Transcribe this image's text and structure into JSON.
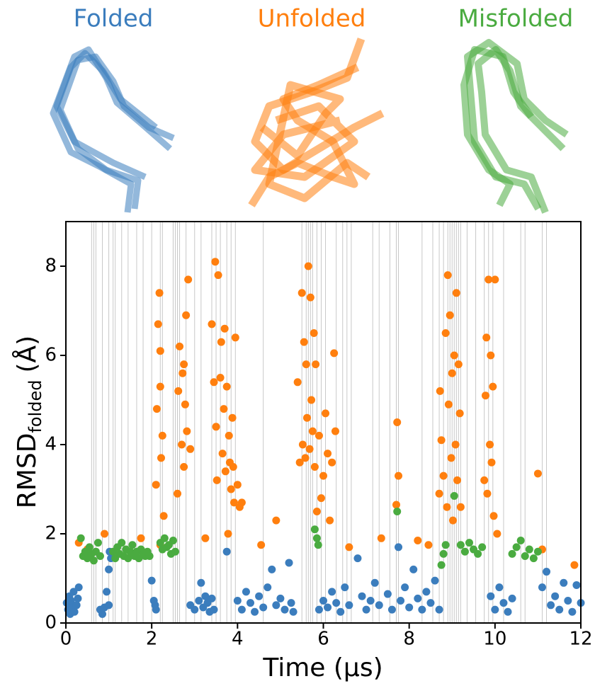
{
  "chart_data": {
    "type": "scatter",
    "xlabel": "Time (μs)",
    "ylabel": {
      "main": "RMSD",
      "sub": "folded",
      "unit": "(Å)"
    },
    "xlim": [
      0,
      12
    ],
    "xticks": [
      0,
      2,
      4,
      6,
      8,
      10,
      12
    ],
    "ylim": [
      0,
      9
    ],
    "yticks": [
      0,
      2,
      4,
      6,
      8
    ],
    "vlines": [
      0.6,
      0.65,
      0.7,
      0.85,
      1.0,
      1.1,
      1.15,
      1.3,
      1.45,
      1.65,
      1.8,
      2.0,
      2.2,
      2.25,
      2.5,
      2.55,
      2.6,
      2.65,
      2.8,
      3.0,
      3.15,
      3.4,
      3.5,
      3.6,
      3.75,
      3.85,
      3.95,
      4.6,
      5.5,
      5.6,
      5.65,
      5.7,
      5.75,
      5.85,
      5.95,
      6.05,
      6.3,
      6.45,
      6.55,
      6.65,
      7.15,
      7.3,
      7.55,
      7.7,
      7.75,
      8.3,
      8.55,
      8.7,
      8.8,
      8.9,
      8.95,
      9.0,
      9.05,
      9.1,
      9.15,
      9.2,
      9.35,
      9.55,
      9.75,
      9.85,
      9.95,
      10.2,
      10.6,
      10.7,
      11.1,
      11.2
    ],
    "series": [
      {
        "name": "Folded",
        "color": "#3b7dbd",
        "x": [
          0.02,
          0.05,
          0.08,
          0.1,
          0.12,
          0.15,
          0.18,
          0.2,
          0.25,
          0.3,
          0.28,
          0.8,
          0.85,
          0.9,
          0.95,
          1.0,
          1.0,
          1.05,
          1.02,
          2.0,
          2.05,
          2.1,
          2.08,
          2.9,
          3.0,
          3.1,
          3.15,
          3.2,
          3.25,
          3.3,
          3.35,
          3.4,
          3.45,
          3.75,
          4.0,
          4.1,
          4.2,
          4.3,
          4.4,
          4.5,
          4.6,
          4.7,
          4.8,
          4.9,
          5.0,
          5.1,
          5.2,
          5.25,
          5.3,
          5.9,
          6.0,
          6.1,
          6.2,
          6.3,
          6.4,
          6.5,
          6.6,
          6.8,
          6.9,
          7.0,
          7.1,
          7.2,
          7.3,
          7.5,
          7.6,
          7.75,
          7.8,
          7.9,
          8.0,
          8.1,
          8.2,
          8.3,
          8.4,
          8.5,
          8.6,
          8.7,
          9.9,
          10.0,
          10.1,
          10.2,
          10.3,
          10.4,
          11.1,
          11.2,
          11.3,
          11.4,
          11.5,
          11.6,
          11.7,
          11.8,
          11.9,
          12.0
        ],
        "values": [
          0.45,
          0.3,
          0.6,
          0.2,
          0.5,
          0.35,
          0.7,
          0.25,
          0.4,
          0.8,
          0.55,
          0.3,
          0.2,
          0.35,
          0.7,
          0.4,
          1.2,
          1.45,
          1.6,
          0.95,
          0.5,
          0.3,
          0.4,
          0.4,
          0.3,
          0.5,
          0.9,
          0.35,
          0.6,
          0.45,
          0.25,
          0.55,
          0.3,
          1.6,
          0.5,
          0.3,
          0.7,
          0.45,
          0.25,
          0.6,
          0.35,
          0.8,
          1.2,
          0.4,
          0.55,
          0.3,
          1.35,
          0.45,
          0.25,
          0.3,
          0.5,
          0.35,
          0.7,
          0.45,
          0.25,
          0.8,
          0.4,
          1.45,
          0.6,
          0.3,
          0.5,
          0.9,
          0.4,
          0.65,
          0.3,
          1.7,
          0.5,
          0.8,
          0.35,
          1.2,
          0.55,
          0.3,
          0.7,
          0.45,
          0.95,
          0.3,
          0.6,
          0.3,
          0.8,
          0.45,
          0.25,
          0.55,
          0.8,
          1.15,
          0.4,
          0.6,
          0.3,
          0.9,
          0.5,
          0.25,
          0.85,
          0.45
        ]
      },
      {
        "name": "Unfolded",
        "color": "#ff7f0e",
        "x": [
          0.3,
          0.5,
          0.9,
          1.75,
          2.1,
          2.12,
          2.15,
          2.18,
          2.2,
          2.22,
          2.25,
          2.2,
          2.28,
          2.2,
          2.6,
          2.62,
          2.65,
          2.7,
          2.72,
          2.75,
          2.78,
          2.8,
          2.82,
          2.85,
          2.9,
          2.75,
          3.25,
          3.4,
          3.45,
          3.48,
          3.5,
          3.52,
          3.55,
          3.6,
          3.62,
          3.65,
          3.68,
          3.7,
          3.72,
          3.75,
          3.78,
          3.8,
          3.82,
          3.85,
          3.88,
          3.9,
          3.92,
          3.95,
          4.0,
          4.05,
          4.1,
          4.55,
          4.9,
          5.4,
          5.45,
          5.5,
          5.52,
          5.55,
          5.58,
          5.6,
          5.62,
          5.65,
          5.68,
          5.7,
          5.72,
          5.75,
          5.78,
          5.8,
          5.82,
          5.85,
          5.9,
          5.95,
          6.0,
          6.05,
          6.1,
          6.15,
          6.2,
          6.25,
          6.28,
          6.6,
          7.35,
          7.7,
          7.72,
          7.75,
          8.2,
          8.45,
          8.7,
          8.72,
          8.75,
          8.8,
          8.85,
          8.88,
          8.9,
          8.92,
          8.95,
          8.98,
          9.0,
          9.02,
          9.05,
          9.08,
          9.1,
          9.12,
          9.15,
          9.18,
          9.2,
          9.75,
          9.78,
          9.8,
          9.82,
          9.85,
          9.88,
          9.9,
          9.92,
          9.95,
          9.97,
          10.0,
          10.05,
          11.0,
          11.1,
          11.85
        ],
        "values": [
          1.8,
          1.65,
          2.0,
          1.9,
          3.1,
          4.8,
          6.7,
          7.4,
          5.3,
          3.7,
          4.2,
          6.1,
          2.4,
          1.75,
          2.9,
          5.2,
          6.2,
          4.0,
          5.6,
          3.5,
          4.9,
          6.9,
          4.3,
          7.7,
          3.9,
          5.8,
          1.9,
          6.7,
          5.4,
          8.1,
          4.4,
          3.2,
          7.8,
          5.5,
          6.3,
          3.8,
          4.8,
          6.6,
          3.4,
          5.3,
          2.0,
          4.2,
          3.6,
          3.0,
          4.6,
          3.5,
          2.7,
          6.4,
          3.1,
          2.6,
          2.7,
          1.75,
          2.3,
          5.4,
          3.6,
          7.4,
          4.0,
          6.3,
          3.7,
          5.8,
          4.6,
          8.0,
          3.9,
          7.3,
          5.0,
          4.3,
          6.5,
          3.5,
          5.8,
          2.5,
          4.2,
          2.8,
          3.3,
          4.7,
          3.8,
          2.3,
          3.6,
          6.05,
          4.3,
          1.7,
          1.9,
          2.65,
          4.5,
          3.3,
          1.85,
          1.75,
          2.9,
          5.2,
          4.1,
          3.3,
          6.5,
          2.6,
          7.8,
          4.9,
          6.9,
          3.7,
          5.6,
          2.3,
          6.0,
          4.0,
          7.4,
          3.2,
          5.8,
          4.7,
          2.6,
          3.2,
          5.1,
          6.4,
          2.9,
          7.7,
          4.0,
          6.0,
          3.6,
          5.3,
          2.4,
          7.7,
          2.0,
          3.35,
          1.65,
          1.3
        ]
      },
      {
        "name": "Misfolded",
        "color": "#4aab40",
        "x": [
          0.35,
          0.4,
          0.45,
          0.5,
          0.55,
          0.6,
          0.65,
          0.7,
          0.75,
          0.8,
          1.1,
          1.15,
          1.2,
          1.25,
          1.3,
          1.35,
          1.4,
          1.45,
          1.5,
          1.55,
          1.6,
          1.65,
          1.7,
          1.75,
          1.8,
          1.85,
          1.9,
          1.95,
          2.2,
          2.25,
          2.3,
          2.35,
          2.4,
          2.45,
          2.5,
          2.55,
          5.8,
          5.85,
          5.88,
          7.72,
          8.75,
          8.8,
          8.85,
          9.05,
          9.2,
          9.3,
          9.4,
          9.5,
          9.6,
          9.7,
          10.4,
          10.5,
          10.6,
          10.7,
          10.8,
          10.9,
          11.0
        ],
        "values": [
          1.9,
          1.5,
          1.6,
          1.45,
          1.7,
          1.55,
          1.4,
          1.6,
          1.8,
          1.5,
          1.6,
          1.45,
          1.7,
          1.55,
          1.8,
          1.5,
          1.65,
          1.45,
          1.6,
          1.75,
          1.5,
          1.6,
          1.45,
          1.65,
          1.55,
          1.5,
          1.6,
          1.5,
          1.8,
          1.65,
          1.9,
          1.7,
          1.75,
          1.55,
          1.85,
          1.6,
          2.1,
          1.9,
          1.75,
          2.5,
          1.3,
          1.55,
          1.75,
          2.85,
          1.75,
          1.6,
          1.8,
          1.65,
          1.55,
          1.7,
          1.55,
          1.7,
          1.85,
          1.5,
          1.65,
          1.45,
          1.6
        ]
      }
    ]
  }
}
